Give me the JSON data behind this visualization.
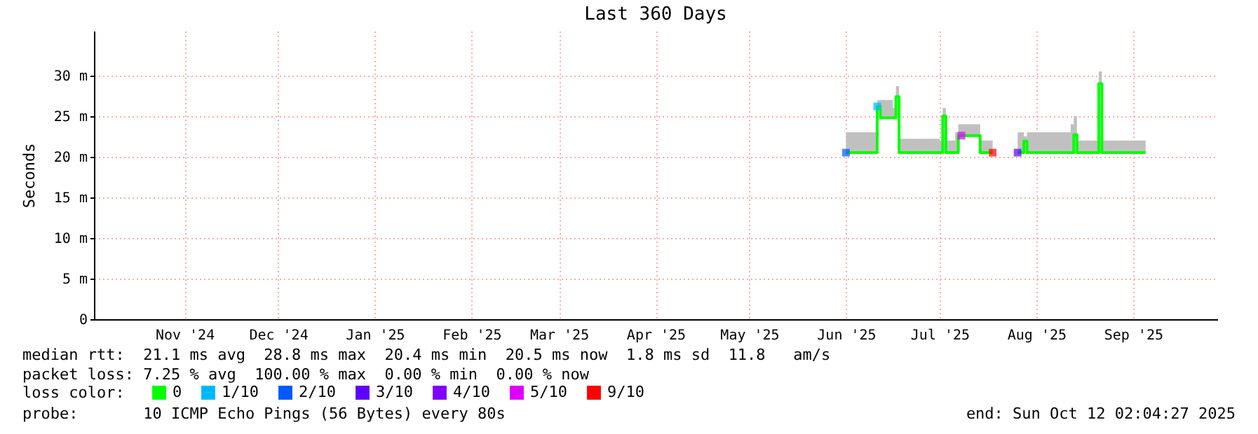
{
  "chart_data": {
    "type": "step",
    "title": "Last 360 Days",
    "ylabel": "Seconds",
    "legend_title": "loss color:",
    "x": [
      "2025-06-15",
      "2025-06-24",
      "2025-06-25",
      "2025-06-26",
      "2025-06-30",
      "2025-07-01",
      "2025-07-02",
      "2025-07-15",
      "2025-07-16",
      "2025-07-17",
      "2025-07-20",
      "2025-07-21",
      "2025-07-27",
      "2025-07-28",
      "2025-08-01",
      "2025-08-05",
      "2025-08-09",
      "2025-08-11",
      "2025-08-12",
      "2025-08-26",
      "2025-08-27",
      "2025-08-28",
      "2025-09-04",
      "2025-09-05",
      "2025-09-19"
    ],
    "series": [
      {
        "name": "0",
        "color": "#00ff00",
        "values": [
          20.5,
          20.5,
          26.2,
          24.8,
          24.8,
          27.4,
          20.5,
          20.5,
          25,
          20.5,
          20.5,
          22.6,
          22.6,
          20.5,
          20.5,
          null,
          20.5,
          21.9,
          20.5,
          20.5,
          22.7,
          20.5,
          29,
          20.5,
          20.5
        ],
        "lower": [
          20.5,
          20.5,
          26.2,
          24.8,
          24.8,
          27.4,
          20.5,
          20.5,
          25,
          20.5,
          20.5,
          22.6,
          22.6,
          20.5,
          20.5,
          null,
          20.5,
          21.9,
          20.5,
          20.5,
          22.7,
          20.5,
          29,
          20.5,
          20.5
        ],
        "upper": [
          23,
          23,
          27,
          27,
          26,
          28.7,
          22.2,
          22,
          26,
          22,
          23,
          24,
          24,
          22,
          23,
          null,
          23,
          22.5,
          23,
          24,
          25,
          22,
          30.5,
          22,
          22
        ]
      },
      {
        "name": "1/10",
        "color": "#00b8ff",
        "type": "scatter",
        "x": [
          "2025-06-25"
        ],
        "values": [
          26.2
        ]
      },
      {
        "name": "2/10",
        "color": "#0059ff",
        "type": "scatter",
        "x": [
          "2025-06-15"
        ],
        "values": [
          20.5
        ]
      },
      {
        "name": "3/10",
        "color": "#5e00ff",
        "type": "scatter",
        "x": [
          "2025-08-09"
        ],
        "values": [
          20.5
        ]
      },
      {
        "name": "4/10",
        "color": "#7e00ff",
        "type": "scatter",
        "values": [
          null,
          null,
          null,
          null,
          null,
          null,
          null,
          null,
          null,
          null,
          null,
          null,
          null,
          null,
          null,
          null,
          null,
          null,
          null,
          null,
          null,
          null,
          null,
          null,
          null
        ]
      },
      {
        "name": "5/10",
        "color": "#dd00ff",
        "type": "scatter",
        "x": [
          "2025-07-22"
        ],
        "values": [
          22.6
        ]
      },
      {
        "name": "9/10",
        "color": "#ff0000",
        "type": "scatter",
        "x": [
          "2025-08-01"
        ],
        "values": [
          20.5
        ]
      }
    ],
    "xlim": [
      "2024-10-17",
      "2025-10-12"
    ],
    "xticks": [
      {
        "value": "2024-11-15",
        "label": "Nov '24"
      },
      {
        "value": "2024-12-15",
        "label": "Dec '24"
      },
      {
        "value": "2025-01-15",
        "label": "Jan '25"
      },
      {
        "value": "2025-02-15",
        "label": "Feb '25"
      },
      {
        "value": "2025-03-15",
        "label": "Mar '25"
      },
      {
        "value": "2025-04-15",
        "label": "Apr '25"
      },
      {
        "value": "2025-05-15",
        "label": "May '25"
      },
      {
        "value": "2025-06-15",
        "label": "Jun '25"
      },
      {
        "value": "2025-07-15",
        "label": "Jul '25"
      },
      {
        "value": "2025-08-15",
        "label": "Aug '25"
      },
      {
        "value": "2025-09-15",
        "label": "Sep '25"
      }
    ],
    "ylim": [
      0,
      35.5
    ],
    "yticks": [
      0,
      {
        "value": 5,
        "label": "5 m"
      },
      {
        "value": 10,
        "label": "10 m"
      },
      {
        "value": 15,
        "label": "15 m"
      },
      {
        "value": 20,
        "label": "20 m"
      },
      {
        "value": 25,
        "label": "25 m"
      },
      {
        "value": 30,
        "label": "30 m"
      }
    ],
    "grid": true,
    "legend": "bottom left",
    "annotations": [
      "median rtt:  21.1 ms avg  28.8 ms max  20.4 ms min  20.5 ms now  1.8 ms sd  11.8   am/s",
      "packet loss: 7.25 % avg  100.00 % max  0.00 % min  0.00 % now",
      "probe:       10 ICMP Echo Pings (56 Bytes) every 80s",
      "end: Sun Oct 12 02:04:27 2025"
    ]
  }
}
